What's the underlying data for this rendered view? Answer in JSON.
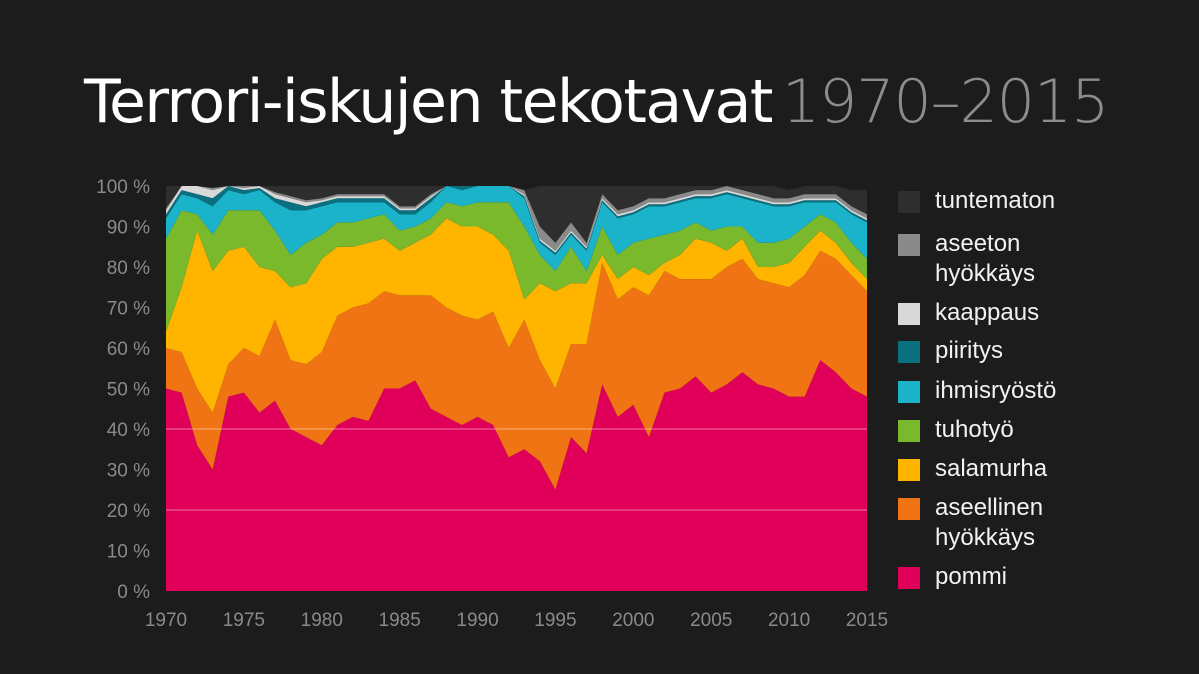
{
  "title": {
    "main": "Terrori-iskujen tekotavat",
    "years": "1970–2015"
  },
  "colors": {
    "background": "#1c1c1c",
    "pommi": "#e0005a",
    "aseellinen": "#f07314",
    "salamurha": "#ffb400",
    "tuhotyo": "#7ab82c",
    "ihmisryosto": "#1ab3c9",
    "piiritys": "#0a7080",
    "kaappaus": "#d9d9d9",
    "aseeton": "#8a8a8a",
    "tuntematon": "#2e2e2e"
  },
  "legend": [
    {
      "key": "tuntematon",
      "label": "tuntematon"
    },
    {
      "key": "aseeton",
      "label": "aseeton\nhyökkäys"
    },
    {
      "key": "kaappaus",
      "label": "kaappaus"
    },
    {
      "key": "piiritys",
      "label": "piiritys"
    },
    {
      "key": "ihmisryosto",
      "label": "ihmisryöstö"
    },
    {
      "key": "tuhotyo",
      "label": "tuhotyö"
    },
    {
      "key": "salamurha",
      "label": "salamurha"
    },
    {
      "key": "aseellinen",
      "label": "aseellinen\nhyökkäys"
    },
    {
      "key": "pommi",
      "label": "pommi"
    }
  ],
  "chart_data": {
    "type": "area",
    "stacked": true,
    "ylim": [
      0,
      100
    ],
    "xlim": [
      1970,
      2015
    ],
    "y_ticks": [
      "0 %",
      "10 %",
      "20 %",
      "30 %",
      "40 %",
      "50 %",
      "60 %",
      "70 %",
      "80 %",
      "90 %",
      "100 %"
    ],
    "x_ticks": [
      "1970",
      "1975",
      "1980",
      "1985",
      "1990",
      "1995",
      "2000",
      "2005",
      "2010",
      "2015"
    ],
    "gridlines_at": [
      20,
      40
    ],
    "x": [
      1970,
      1971,
      1972,
      1973,
      1974,
      1975,
      1976,
      1977,
      1978,
      1979,
      1980,
      1981,
      1982,
      1983,
      1984,
      1985,
      1986,
      1987,
      1988,
      1989,
      1990,
      1991,
      1992,
      1993,
      1994,
      1995,
      1996,
      1997,
      1998,
      1999,
      2000,
      2001,
      2002,
      2003,
      2004,
      2005,
      2006,
      2007,
      2008,
      2009,
      2010,
      2011,
      2012,
      2013,
      2014,
      2015
    ],
    "series": [
      {
        "name": "pommi",
        "key": "pommi",
        "values": [
          50,
          49,
          36,
          30,
          48,
          49,
          44,
          47,
          40,
          38,
          36,
          41,
          43,
          42,
          50,
          50,
          52,
          45,
          43,
          41,
          43,
          41,
          33,
          35,
          32,
          25,
          38,
          34,
          51,
          43,
          46,
          38,
          49,
          50,
          53,
          49,
          51,
          54,
          51,
          50,
          48,
          48,
          57,
          54,
          50,
          48
        ]
      },
      {
        "name": "aseellinen hyökkäys",
        "key": "aseellinen",
        "values": [
          10,
          10,
          14,
          14,
          8,
          11,
          14,
          20,
          17,
          18,
          23,
          27,
          27,
          29,
          24,
          23,
          21,
          28,
          27,
          27,
          24,
          28,
          27,
          32,
          25,
          25,
          23,
          27,
          30,
          29,
          29,
          35,
          30,
          27,
          24,
          28,
          29,
          28,
          26,
          26,
          27,
          30,
          27,
          28,
          28,
          26
        ]
      },
      {
        "name": "salamurha",
        "key": "salamurha",
        "values": [
          4,
          16,
          39,
          35,
          28,
          25,
          22,
          12,
          18,
          20,
          23,
          17,
          15,
          15,
          13,
          11,
          13,
          15,
          22,
          22,
          23,
          19,
          24,
          5,
          19,
          24,
          15,
          15,
          2,
          5,
          5,
          5,
          2,
          6,
          10,
          9,
          4,
          5,
          3,
          4,
          6,
          7,
          5,
          4,
          3,
          3
        ]
      },
      {
        "name": "tuhotyö",
        "key": "tuhotyo",
        "values": [
          23,
          19,
          4,
          9,
          10,
          9,
          14,
          10,
          8,
          10,
          6,
          6,
          6,
          6,
          6,
          5,
          4,
          4,
          4,
          5,
          6,
          8,
          12,
          18,
          7,
          5,
          9,
          3,
          7,
          6,
          6,
          9,
          7,
          6,
          4,
          3,
          6,
          3,
          6,
          6,
          6,
          5,
          4,
          5,
          5,
          5
        ]
      },
      {
        "name": "ihmisryöstö",
        "key": "ihmisryosto",
        "values": [
          5,
          4,
          4,
          7,
          5,
          4,
          5,
          7,
          11,
          8,
          7,
          5,
          5,
          4,
          3,
          4,
          3,
          4,
          4,
          4,
          4,
          4,
          4,
          7,
          3,
          4,
          3,
          5,
          6,
          9,
          7,
          8,
          7,
          7,
          6,
          8,
          8,
          7,
          10,
          9,
          8,
          6,
          3,
          5,
          7,
          9
        ]
      },
      {
        "name": "piiritys",
        "key": "piiritys",
        "values": [
          1,
          1,
          1,
          2,
          1,
          1,
          0.5,
          1,
          2,
          1,
          1,
          1,
          1,
          1,
          1,
          1,
          1,
          1,
          0.5,
          1,
          0.5,
          0.5,
          1,
          0.5,
          0.5,
          0.5,
          0.5,
          0.5,
          0.5,
          0.5,
          0.5,
          0.5,
          0.5,
          0.5,
          0.5,
          0.5,
          0.5,
          0.5,
          0.5,
          0.5,
          0.5,
          0.5,
          0.5,
          0.5,
          0.5,
          0.5
        ]
      },
      {
        "name": "kaappaus",
        "key": "kaappaus",
        "values": [
          1,
          1,
          2,
          2,
          0.5,
          0.5,
          0.5,
          1,
          1,
          1,
          0.5,
          0.5,
          0.5,
          0.5,
          0.5,
          0.5,
          0.5,
          0.5,
          0.5,
          0.5,
          0.5,
          0.5,
          0.5,
          0.5,
          0.5,
          0.5,
          0.5,
          0.5,
          0.5,
          0.5,
          0.5,
          0.5,
          0.5,
          0.5,
          0.5,
          0.5,
          0.5,
          0.5,
          0.5,
          0.5,
          0.5,
          0.5,
          0.5,
          0.5,
          0.5,
          0.5
        ]
      },
      {
        "name": "aseeton hyökkäys",
        "key": "aseeton",
        "values": [
          0.5,
          0.5,
          0.5,
          0.5,
          0.5,
          0.5,
          0.5,
          0.5,
          0.5,
          0.5,
          0.5,
          0.5,
          0.5,
          0.5,
          0.5,
          0.5,
          0.5,
          0.5,
          0.5,
          0.5,
          0.5,
          1,
          1,
          1,
          3,
          2,
          2,
          1,
          1,
          1,
          1,
          1,
          1,
          1,
          1,
          1,
          1,
          1,
          1,
          1,
          1,
          1,
          1,
          1,
          1,
          1
        ]
      },
      {
        "name": "tuntematon",
        "key": "tuntematon",
        "values": [
          5.5,
          0,
          0,
          0,
          0,
          0,
          0,
          1.5,
          3.5,
          4,
          3,
          3,
          3,
          3,
          6,
          6,
          7,
          5,
          0,
          0,
          0,
          0,
          0,
          0,
          12,
          15,
          10,
          15,
          2,
          7,
          5,
          3,
          4,
          2,
          1,
          1,
          0,
          1,
          2,
          3,
          2,
          2,
          2,
          2,
          4,
          6
        ]
      }
    ]
  }
}
